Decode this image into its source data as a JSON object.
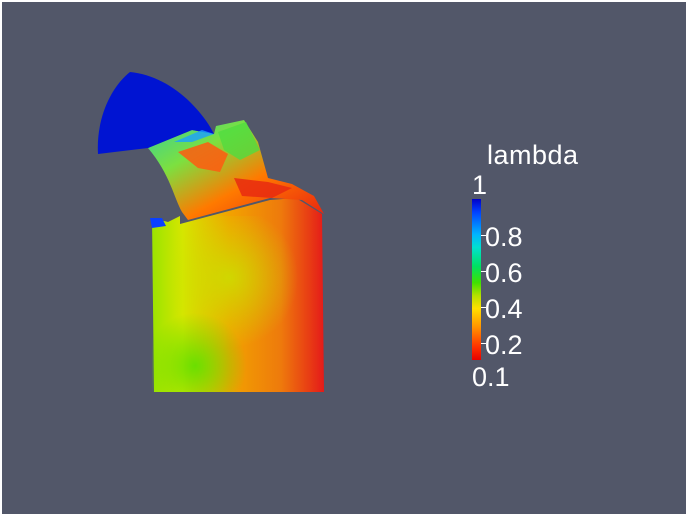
{
  "legend": {
    "title": "lambda",
    "max_label": "1",
    "min_label": "0.1",
    "ticks": [
      "0.8",
      "0.6",
      "0.4",
      "0.2"
    ]
  },
  "colormap": {
    "high": "#0000c8",
    "mid": "#40e000",
    "low": "#e80000"
  },
  "background_color": "#525769"
}
